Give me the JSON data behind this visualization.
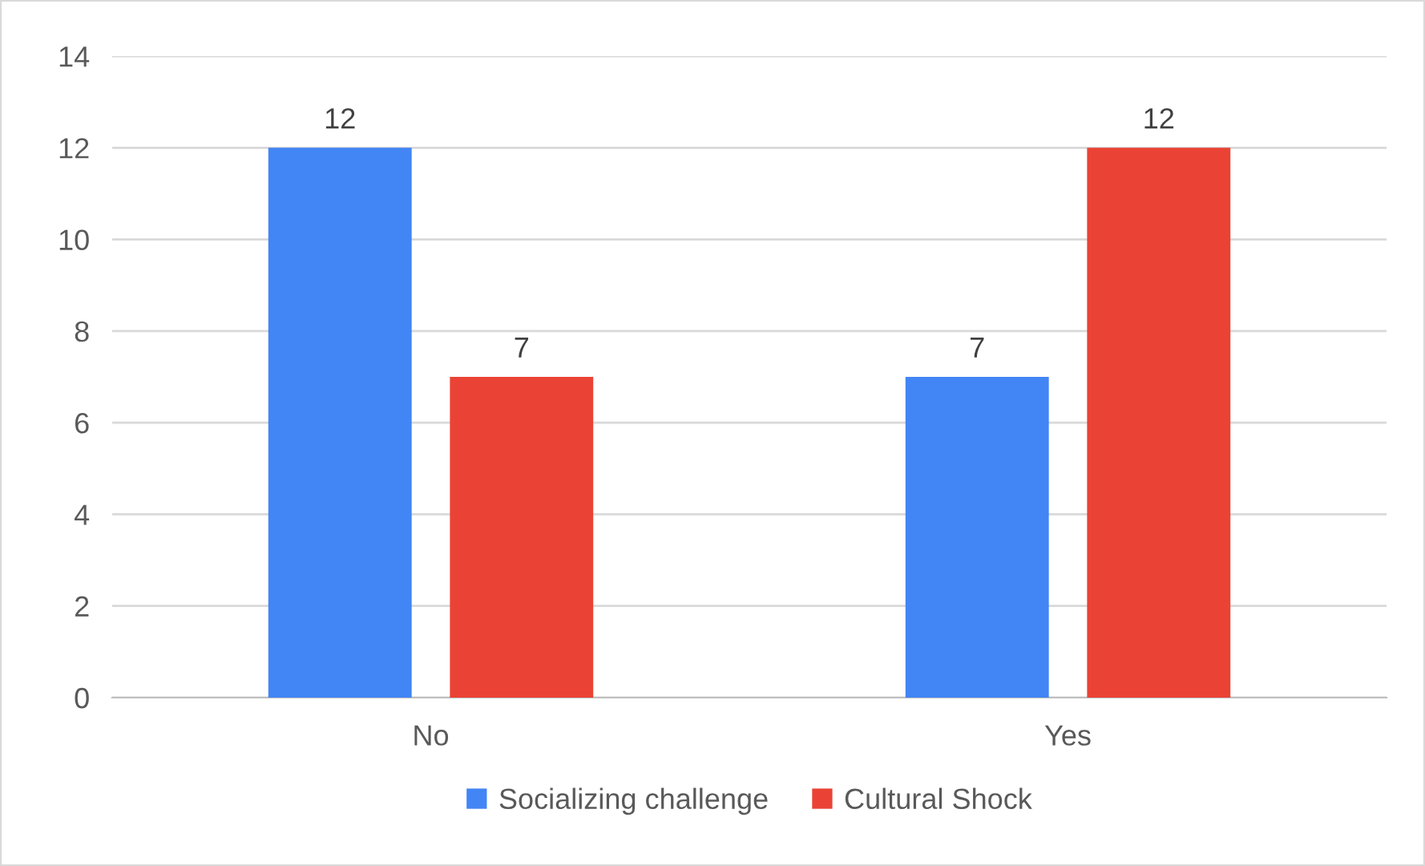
{
  "chart_data": {
    "type": "bar",
    "categories": [
      "No",
      "Yes"
    ],
    "series": [
      {
        "name": "Socializing challenge",
        "color": "#4285f4",
        "values": [
          12,
          7
        ]
      },
      {
        "name": "Cultural Shock",
        "color": "#ea4335",
        "values": [
          7,
          12
        ]
      }
    ],
    "ylim": [
      0,
      14
    ],
    "yticks": [
      0,
      2,
      4,
      6,
      8,
      10,
      12,
      14
    ],
    "grid": "y",
    "legend": "bottom",
    "data_labels": true
  }
}
